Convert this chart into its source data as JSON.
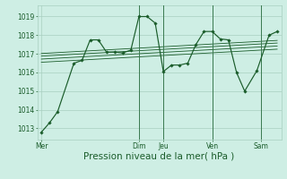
{
  "bg_color": "#ceeee4",
  "grid_color": "#a8cfbf",
  "line_color": "#1a5c2a",
  "marker_color": "#1a5c2a",
  "xlabel": "Pression niveau de la mer( hPa )",
  "xlabel_fontsize": 7.5,
  "yticks": [
    1013,
    1014,
    1015,
    1016,
    1017,
    1018,
    1019
  ],
  "ylim": [
    1012.4,
    1019.6
  ],
  "day_labels": [
    "Mer",
    "Dim",
    "Jeu",
    "Ven",
    "Sam"
  ],
  "day_positions": [
    0,
    48,
    60,
    84,
    108
  ],
  "xlim": [
    -2,
    118
  ],
  "vlines": [
    48,
    60,
    84,
    108
  ],
  "series": [
    [
      0,
      1012.8
    ],
    [
      4,
      1013.3
    ],
    [
      8,
      1013.9
    ],
    [
      16,
      1016.5
    ],
    [
      20,
      1016.65
    ],
    [
      24,
      1017.75
    ],
    [
      28,
      1017.75
    ],
    [
      32,
      1017.1
    ],
    [
      36,
      1017.1
    ],
    [
      40,
      1017.05
    ],
    [
      44,
      1017.2
    ],
    [
      48,
      1019.0
    ],
    [
      52,
      1019.0
    ],
    [
      56,
      1018.65
    ],
    [
      60,
      1016.05
    ],
    [
      64,
      1016.4
    ],
    [
      68,
      1016.4
    ],
    [
      72,
      1016.5
    ],
    [
      76,
      1017.5
    ],
    [
      80,
      1018.2
    ],
    [
      84,
      1018.2
    ],
    [
      88,
      1017.8
    ],
    [
      92,
      1017.75
    ],
    [
      96,
      1016.0
    ],
    [
      100,
      1015.0
    ],
    [
      106,
      1016.1
    ],
    [
      112,
      1018.0
    ],
    [
      116,
      1018.2
    ]
  ],
  "trend_lines": [
    [
      [
        0,
        1016.55
      ],
      [
        116,
        1017.25
      ]
    ],
    [
      [
        0,
        1016.72
      ],
      [
        116,
        1017.42
      ]
    ],
    [
      [
        0,
        1016.88
      ],
      [
        116,
        1017.58
      ]
    ],
    [
      [
        0,
        1017.02
      ],
      [
        116,
        1017.72
      ]
    ]
  ]
}
